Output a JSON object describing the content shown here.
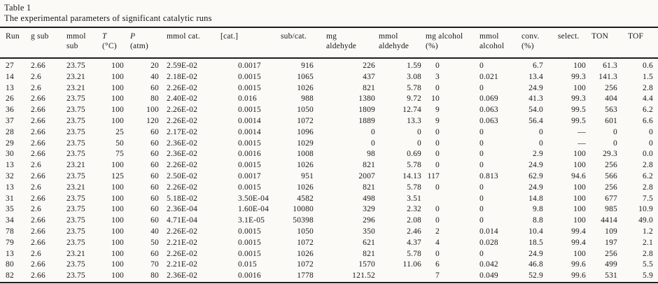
{
  "page": {
    "table_label": "Table 1",
    "table_caption": "The experimental parameters of significant catalytic runs"
  },
  "table": {
    "columns": [
      {
        "key": "run",
        "lines": [
          "Run"
        ],
        "italic_first": false
      },
      {
        "key": "g-sub",
        "lines": [
          "g sub"
        ],
        "italic_first": false
      },
      {
        "key": "mmol-sub",
        "lines": [
          "mmol",
          "sub"
        ],
        "italic_first": false
      },
      {
        "key": "temperature",
        "lines": [
          "T",
          "(°C)"
        ],
        "italic_first": true
      },
      {
        "key": "pressure",
        "lines": [
          "P",
          "(atm)"
        ],
        "italic_first": true
      },
      {
        "key": "mmol-cat",
        "lines": [
          "mmol cat."
        ],
        "italic_first": false
      },
      {
        "key": "cat-conc",
        "lines": [
          "[cat.]"
        ],
        "italic_first": false
      },
      {
        "key": "sub-cat-ratio",
        "lines": [
          "sub/cat."
        ],
        "italic_first": false
      },
      {
        "key": "mg-aldehyde",
        "lines": [
          "mg",
          "aldehyde"
        ],
        "italic_first": false
      },
      {
        "key": "mmol-aldehyde",
        "lines": [
          "mmol",
          "aldehyde"
        ],
        "italic_first": false
      },
      {
        "key": "mg-alcohol",
        "lines": [
          "mg alcohol",
          "(%)"
        ],
        "italic_first": false
      },
      {
        "key": "mmol-alcohol",
        "lines": [
          "mmol",
          "alcohol"
        ],
        "italic_first": false
      },
      {
        "key": "conversion",
        "lines": [
          "conv.",
          "(%)"
        ],
        "italic_first": false
      },
      {
        "key": "selectivity",
        "lines": [
          "select."
        ],
        "italic_first": false
      },
      {
        "key": "ton",
        "lines": [
          "TON"
        ],
        "italic_first": false
      },
      {
        "key": "tof",
        "lines": [
          "TOF"
        ],
        "italic_first": false
      }
    ],
    "rows": [
      [
        "27",
        "2.66",
        "23.75",
        "100",
        "20",
        "2.59E-02",
        "0.0017",
        "916",
        "226",
        "1.59",
        "0",
        "0",
        "6.7",
        "100",
        "61.3",
        "0.6"
      ],
      [
        "14",
        "2.6",
        "23.21",
        "100",
        "40",
        "2.18E-02",
        "0.0015",
        "1065",
        "437",
        "3.08",
        "3",
        "0.021",
        "13.4",
        "99.3",
        "141.3",
        "1.5"
      ],
      [
        "13",
        "2.6",
        "23.21",
        "100",
        "60",
        "2.26E-02",
        "0.0015",
        "1026",
        "821",
        "5.78",
        "0",
        "0",
        "24.9",
        "100",
        "256",
        "2.8"
      ],
      [
        "26",
        "2.66",
        "23.75",
        "100",
        "80",
        "2.40E-02",
        "0.016",
        "988",
        "1380",
        "9.72",
        "10",
        "0.069",
        "41.3",
        "99.3",
        "404",
        "4.4"
      ],
      [
        "36",
        "2.66",
        "23.75",
        "100",
        "100",
        "2.26E-02",
        "0.0015",
        "1050",
        "1809",
        "12.74",
        "9",
        "0.063",
        "54.0",
        "99.5",
        "563",
        "6.2"
      ],
      [
        "37",
        "2.66",
        "23.75",
        "100",
        "120",
        "2.26E-02",
        "0.0014",
        "1072",
        "1889",
        "13.3",
        "9",
        "0.063",
        "56.4",
        "99.5",
        "601",
        "6.6"
      ],
      [
        "28",
        "2.66",
        "23.75",
        "25",
        "60",
        "2.17E-02",
        "0.0014",
        "1096",
        "0",
        "0",
        "0",
        "0",
        "0",
        "—",
        "0",
        "0"
      ],
      [
        "29",
        "2.66",
        "23.75",
        "50",
        "60",
        "2.36E-02",
        "0.0015",
        "1029",
        "0",
        "0",
        "0",
        "0",
        "0",
        "—",
        "0",
        "0"
      ],
      [
        "30",
        "2.66",
        "23.75",
        "75",
        "60",
        "2.36E-02",
        "0.0016",
        "1008",
        "98",
        "0.69",
        "0",
        "0",
        "2.9",
        "100",
        "29.3",
        "0.0"
      ],
      [
        "13",
        "2.6",
        "23.21",
        "100",
        "60",
        "2.26E-02",
        "0.0015",
        "1026",
        "821",
        "5.78",
        "0",
        "0",
        "24.9",
        "100",
        "256",
        "2.8"
      ],
      [
        "32",
        "2.66",
        "23.75",
        "125",
        "60",
        "2.50E-02",
        "0.0017",
        "951",
        "2007",
        "14.13",
        "117",
        "0.813",
        "62.9",
        "94.6",
        "566",
        "6.2"
      ],
      [
        "13",
        "2.6",
        "23.21",
        "100",
        "60",
        "2.26E-02",
        "0.0015",
        "1026",
        "821",
        "5.78",
        "0",
        "0",
        "24.9",
        "100",
        "256",
        "2.8"
      ],
      [
        "31",
        "2.66",
        "23.75",
        "100",
        "60",
        "5.18E-02",
        "3.50E-04",
        "4582",
        "498",
        "3.51",
        "",
        "0",
        "14.8",
        "100",
        "677",
        "7.5"
      ],
      [
        "35",
        "2.6",
        "23.75",
        "100",
        "60",
        "2.36E-04",
        "1.60E-04",
        "10080",
        "329",
        "2.32",
        "0",
        "0",
        "9.8",
        "100",
        "985",
        "10.9"
      ],
      [
        "34",
        "2.66",
        "23.75",
        "100",
        "60",
        "4.71E-04",
        "3.1E-05",
        "50398",
        "296",
        "2.08",
        "0",
        "0",
        "8.8",
        "100",
        "4414",
        "49.0"
      ],
      [
        "78",
        "2.66",
        "23.75",
        "100",
        "40",
        "2.26E-02",
        "0.0015",
        "1050",
        "350",
        "2.46",
        "2",
        "0.014",
        "10.4",
        "99.4",
        "109",
        "1.2"
      ],
      [
        "79",
        "2.66",
        "23.75",
        "100",
        "50",
        "2.21E-02",
        "0.0015",
        "1072",
        "621",
        "4.37",
        "4",
        "0.028",
        "18.5",
        "99.4",
        "197",
        "2.1"
      ],
      [
        "13",
        "2.6",
        "23.21",
        "100",
        "60",
        "2.26E-02",
        "0.0015",
        "1026",
        "821",
        "5.78",
        "0",
        "0",
        "24.9",
        "100",
        "256",
        "2.8"
      ],
      [
        "80",
        "2.66",
        "23.75",
        "100",
        "70",
        "2.21E-02",
        "0.015",
        "1072",
        "1570",
        "11.06",
        "6",
        "0.042",
        "46.8",
        "99.6",
        "499",
        "5.5"
      ],
      [
        "82",
        "2.66",
        "23.75",
        "100",
        "80",
        "2.36E-02",
        "0.0016",
        "1778",
        "121.52",
        "",
        "7",
        "0.049",
        "52.9",
        "99.6",
        "531",
        "5.9"
      ]
    ]
  }
}
